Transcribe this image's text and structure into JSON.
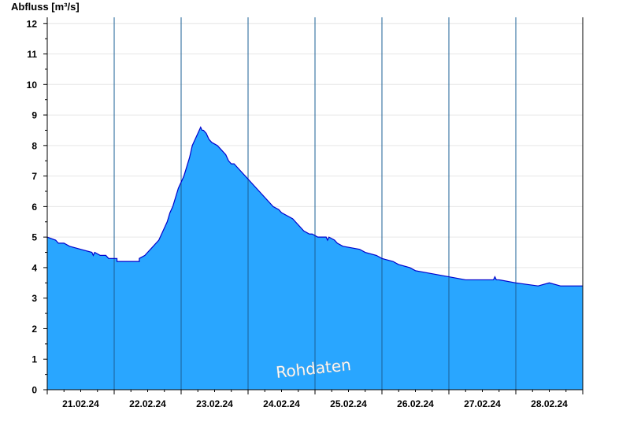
{
  "chart_data": {
    "type": "area",
    "ylabel": "Abfluss [m³/s]",
    "watermark": "Rohdaten",
    "ylim": [
      0,
      12.2
    ],
    "yticks": [
      "0",
      "1",
      "2",
      "3",
      "4",
      "5",
      "6",
      "7",
      "8",
      "9",
      "10",
      "11",
      "12"
    ],
    "xlim_hours": [
      0,
      192
    ],
    "x_day_labels": [
      "21.02.24",
      "22.02.24",
      "23.02.24",
      "24.02.24",
      "25.02.24",
      "26.02.24",
      "27.02.24",
      "28.02.24"
    ],
    "x_unit": "hours since 21.02.24 00:00",
    "grid": true,
    "fill_color": "#29a6ff",
    "line_color": "#0000cc",
    "series": [
      {
        "x": [
          0,
          3,
          4,
          6,
          8,
          12,
          16,
          16.5,
          17,
          19,
          21,
          22,
          24,
          25,
          25,
          33,
          33,
          35,
          36,
          37,
          39,
          40,
          41,
          42,
          43,
          44,
          45,
          46,
          47,
          48,
          49,
          50,
          51,
          51.5,
          52,
          53,
          54,
          54.5,
          55,
          55.5,
          56,
          57,
          57.5,
          58,
          59,
          61,
          62,
          64,
          65,
          66,
          67,
          68,
          70,
          72,
          74,
          75,
          77,
          78,
          80,
          81,
          83,
          84,
          86,
          88,
          89,
          90,
          91,
          92,
          94,
          95,
          97,
          100,
          100.5,
          101,
          103,
          104,
          106,
          112,
          114,
          118,
          120,
          124,
          126,
          130,
          132,
          138,
          144,
          150,
          156,
          160,
          160.5,
          161,
          162,
          168,
          176,
          180,
          184,
          192
        ],
        "y": [
          5.0,
          4.9,
          4.8,
          4.8,
          4.7,
          4.6,
          4.5,
          4.4,
          4.5,
          4.4,
          4.4,
          4.3,
          4.3,
          4.3,
          4.2,
          4.2,
          4.3,
          4.4,
          4.5,
          4.6,
          4.8,
          4.9,
          5.1,
          5.3,
          5.5,
          5.8,
          6.0,
          6.3,
          6.6,
          6.8,
          7.0,
          7.3,
          7.6,
          7.8,
          8.0,
          8.2,
          8.4,
          8.5,
          8.6,
          8.5,
          8.5,
          8.4,
          8.3,
          8.2,
          8.1,
          8.0,
          7.9,
          7.7,
          7.5,
          7.4,
          7.4,
          7.3,
          7.1,
          6.9,
          6.7,
          6.6,
          6.4,
          6.3,
          6.1,
          6.0,
          5.9,
          5.8,
          5.7,
          5.6,
          5.5,
          5.4,
          5.3,
          5.2,
          5.1,
          5.1,
          5.0,
          5.0,
          4.9,
          5.0,
          4.9,
          4.8,
          4.7,
          4.6,
          4.5,
          4.4,
          4.3,
          4.2,
          4.1,
          4.0,
          3.9,
          3.8,
          3.7,
          3.6,
          3.6,
          3.6,
          3.7,
          3.6,
          3.6,
          3.5,
          3.4,
          3.5,
          3.4,
          3.4
        ]
      }
    ]
  }
}
